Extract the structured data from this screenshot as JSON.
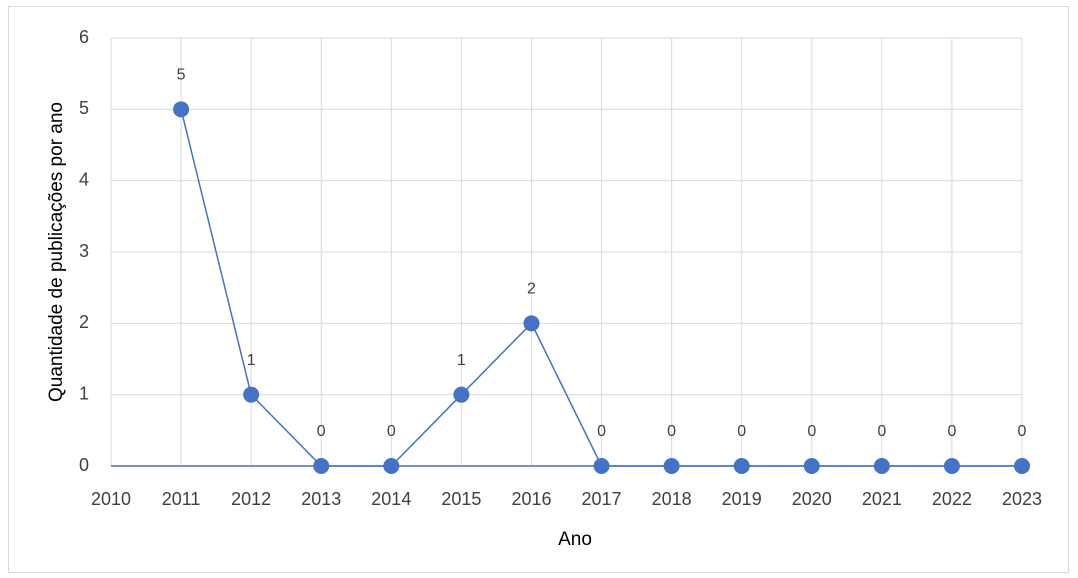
{
  "chart_data": {
    "type": "line",
    "x_label": "Ano",
    "y_label": "Quantidade de publicações por ano",
    "x": [
      2011,
      2012,
      2013,
      2014,
      2015,
      2016,
      2017,
      2018,
      2019,
      2020,
      2021,
      2022,
      2023
    ],
    "series": [
      {
        "name": "Quantidade de publicações por ano",
        "color": "#4472c4",
        "values": [
          5,
          1,
          0,
          0,
          1,
          2,
          0,
          0,
          0,
          0,
          0,
          0,
          0
        ]
      }
    ],
    "xlim": [
      2010,
      2023
    ],
    "xticks": [
      2010,
      2011,
      2012,
      2013,
      2014,
      2015,
      2016,
      2017,
      2018,
      2019,
      2020,
      2021,
      2022,
      2023
    ],
    "ylim": [
      0,
      6
    ],
    "yticks": [
      0,
      1,
      2,
      3,
      4,
      5,
      6
    ],
    "grid": true,
    "data_labels": true
  }
}
